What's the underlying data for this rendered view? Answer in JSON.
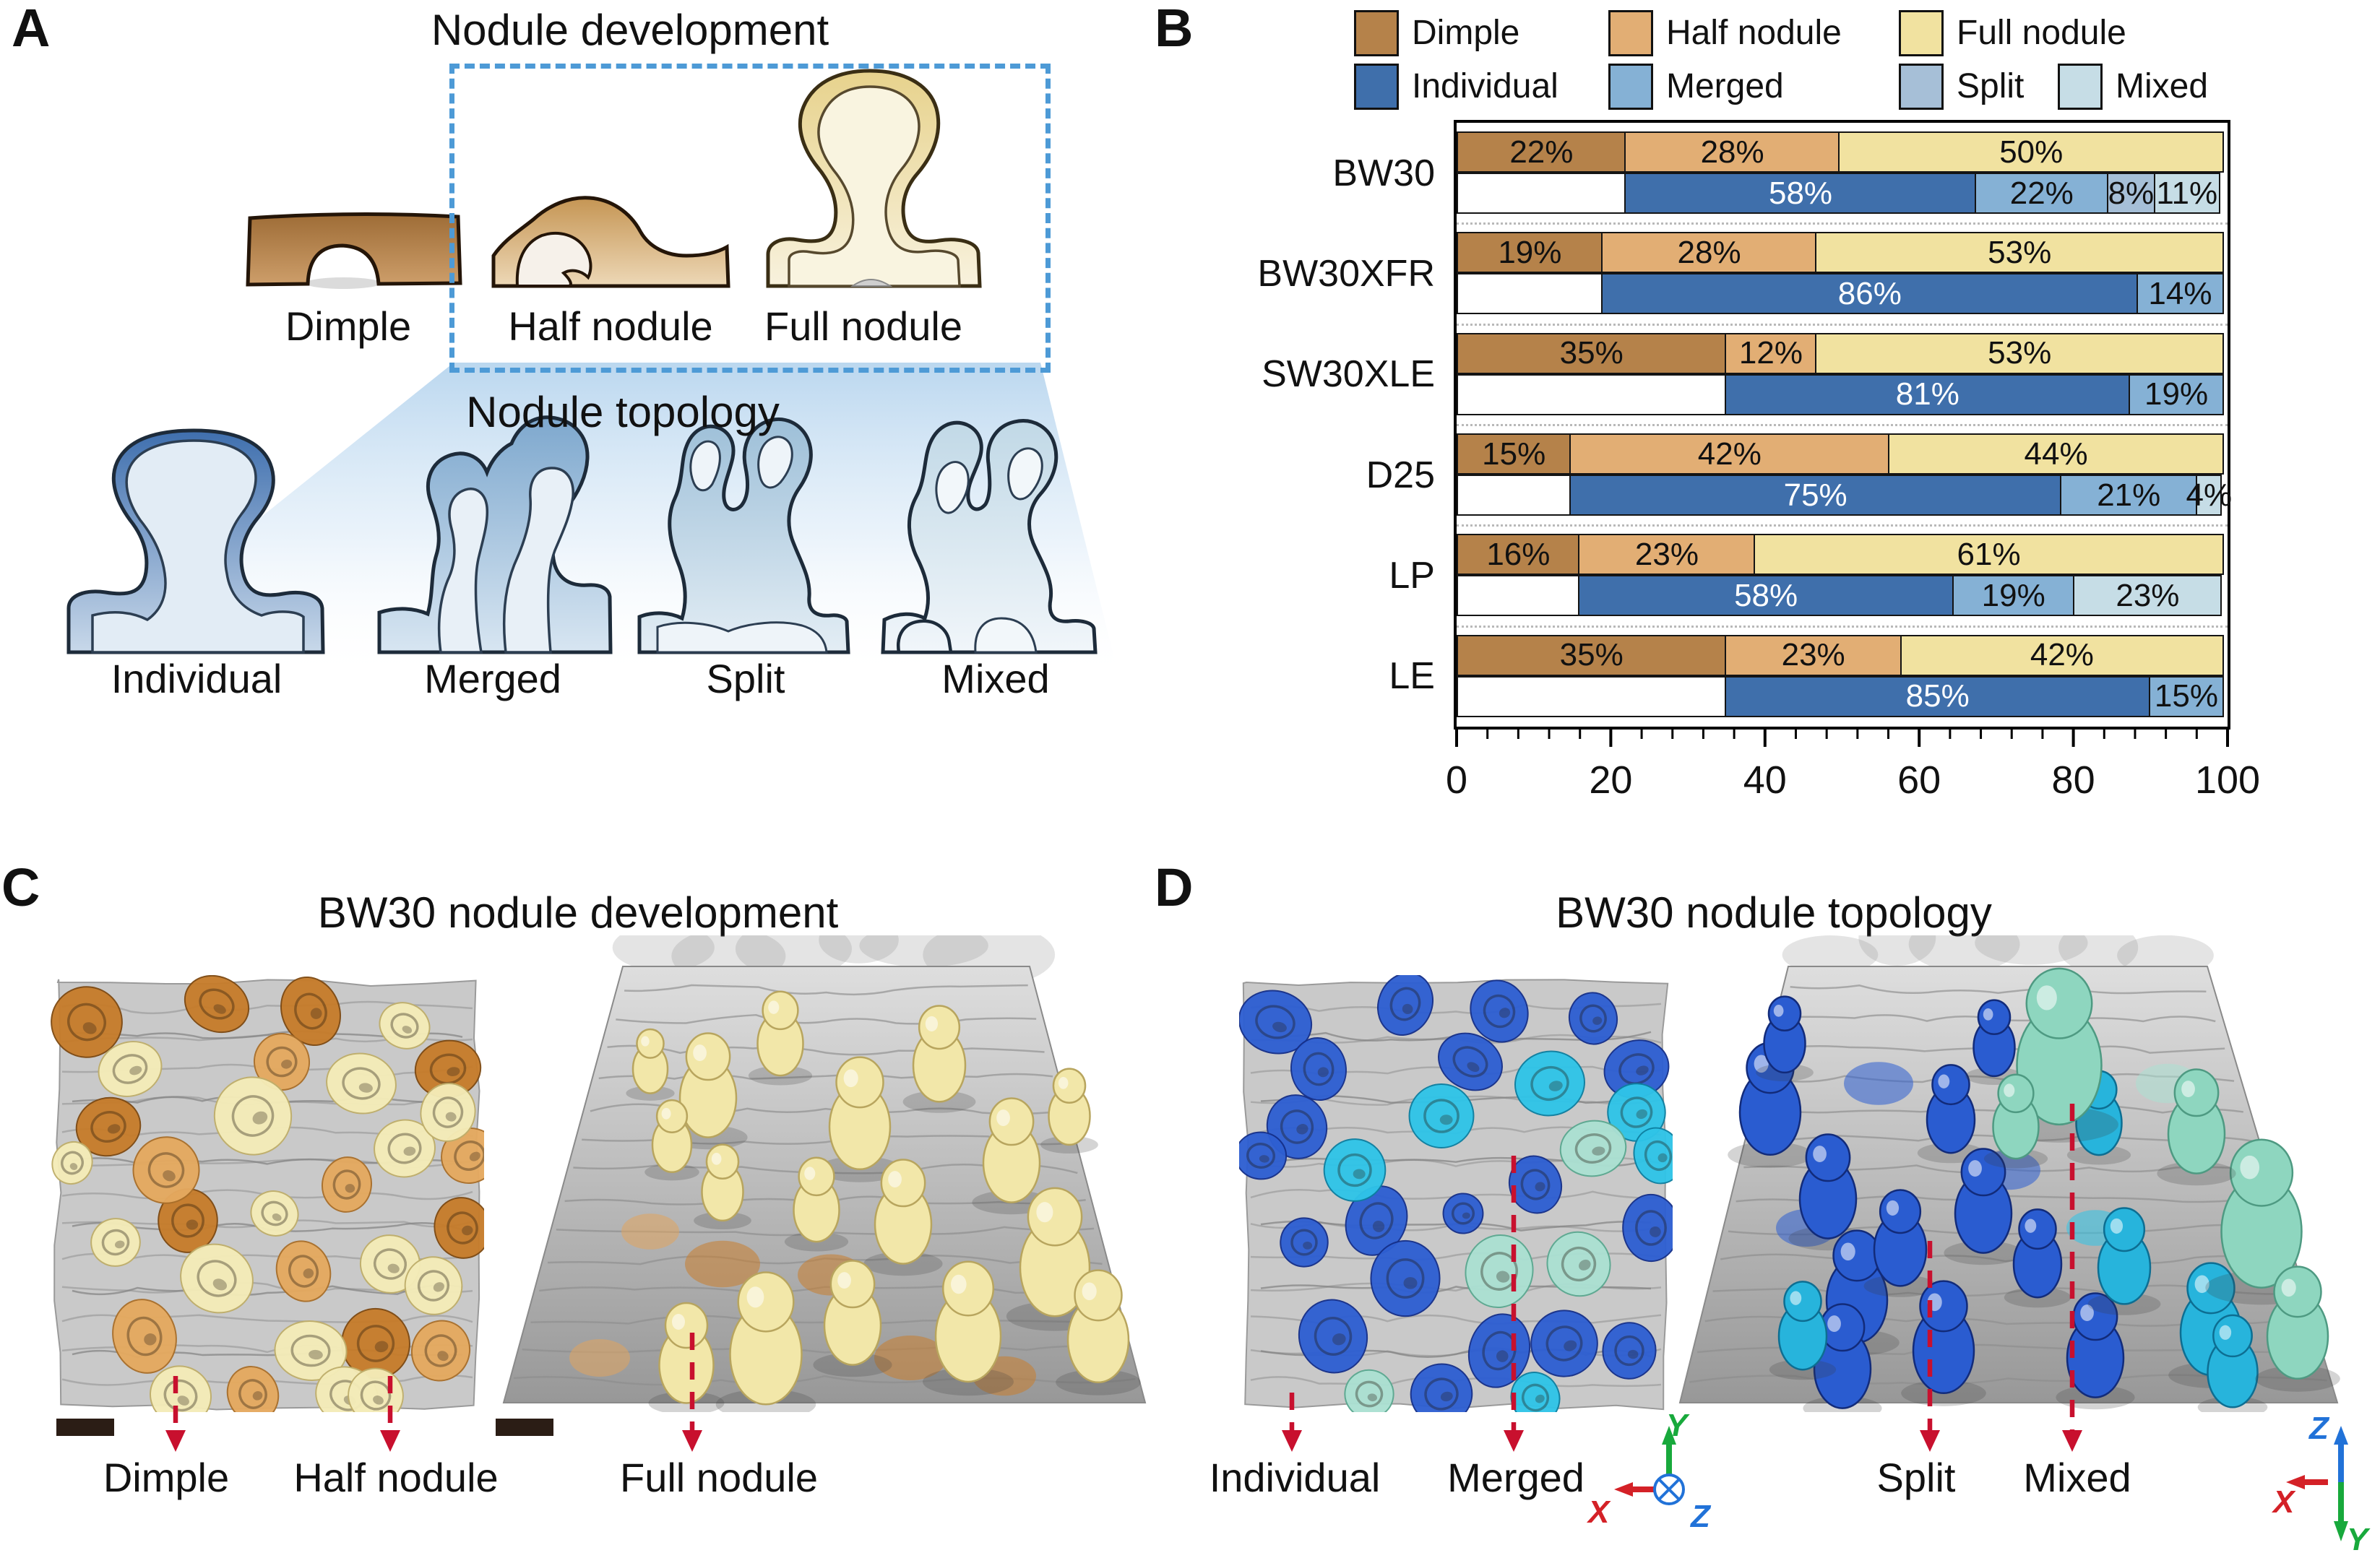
{
  "panel_a": {
    "letter": "A",
    "development": {
      "title": "Nodule development",
      "labels": [
        "Dimple",
        "Half nodule",
        "Full nodule"
      ]
    },
    "topology": {
      "title": "Nodule topology",
      "labels": [
        "Individual",
        "Merged",
        "Split",
        "Mixed"
      ]
    }
  },
  "panel_b": {
    "letter": "B",
    "legend_rows": [
      [
        "Dimple",
        "Half nodule",
        "Full nodule"
      ],
      [
        "Individual",
        "Merged",
        "Split",
        "Mixed"
      ]
    ]
  },
  "chart_data": {
    "type": "bar",
    "orientation": "horizontal-stacked-paired",
    "title": "",
    "xlabel": "",
    "x_axis": {
      "range": [
        0,
        100
      ],
      "ticks": [
        0,
        20,
        40,
        60,
        80,
        100
      ],
      "minor_step": 4
    },
    "categories": [
      "BW30",
      "BW30XFR",
      "SW30XLE",
      "D25",
      "LP",
      "LE"
    ],
    "series_colors": {
      "Dimple": "#b5824a",
      "Half nodule": "#e2ae74",
      "Full nodule": "#f1e2a0",
      "Individual": "#3f6fab",
      "Merged": "#85b1d5",
      "Split": "#a6bfd7",
      "Mixed": "#c6dde6"
    },
    "rows": [
      {
        "category": "BW30",
        "development": [
          {
            "name": "Dimple",
            "pct": 22
          },
          {
            "name": "Half nodule",
            "pct": 28
          },
          {
            "name": "Full nodule",
            "pct": 50
          }
        ],
        "topology": [
          {
            "name": "Individual",
            "pct": 58
          },
          {
            "name": "Merged",
            "pct": 22
          },
          {
            "name": "Split",
            "pct": 8
          },
          {
            "name": "Mixed",
            "pct": 11
          }
        ]
      },
      {
        "category": "BW30XFR",
        "development": [
          {
            "name": "Dimple",
            "pct": 19
          },
          {
            "name": "Half nodule",
            "pct": 28
          },
          {
            "name": "Full nodule",
            "pct": 53
          }
        ],
        "topology": [
          {
            "name": "Individual",
            "pct": 86
          },
          {
            "name": "Merged",
            "pct": 14
          }
        ]
      },
      {
        "category": "SW30XLE",
        "development": [
          {
            "name": "Dimple",
            "pct": 35
          },
          {
            "name": "Half nodule",
            "pct": 12
          },
          {
            "name": "Full nodule",
            "pct": 53
          }
        ],
        "topology": [
          {
            "name": "Individual",
            "pct": 81
          },
          {
            "name": "Merged",
            "pct": 19
          }
        ]
      },
      {
        "category": "D25",
        "development": [
          {
            "name": "Dimple",
            "pct": 15
          },
          {
            "name": "Half nodule",
            "pct": 42
          },
          {
            "name": "Full nodule",
            "pct": 44
          }
        ],
        "topology": [
          {
            "name": "Individual",
            "pct": 75
          },
          {
            "name": "Merged",
            "pct": 21
          },
          {
            "name": "Mixed",
            "pct": 4
          }
        ]
      },
      {
        "category": "LP",
        "development": [
          {
            "name": "Dimple",
            "pct": 16
          },
          {
            "name": "Half nodule",
            "pct": 23
          },
          {
            "name": "Full nodule",
            "pct": 61
          }
        ],
        "topology": [
          {
            "name": "Individual",
            "pct": 58
          },
          {
            "name": "Merged",
            "pct": 19
          },
          {
            "name": "Mixed",
            "pct": 23
          }
        ]
      },
      {
        "category": "LE",
        "development": [
          {
            "name": "Dimple",
            "pct": 35
          },
          {
            "name": "Half nodule",
            "pct": 23
          },
          {
            "name": "Full nodule",
            "pct": 42
          }
        ],
        "topology": [
          {
            "name": "Individual",
            "pct": 85
          },
          {
            "name": "Merged",
            "pct": 15
          }
        ]
      }
    ]
  },
  "panel_c": {
    "letter": "C",
    "title": "BW30 nodule development",
    "annotations": [
      "Dimple",
      "Half nodule",
      "Full nodule"
    ]
  },
  "panel_d": {
    "letter": "D",
    "title": "BW30 nodule topology",
    "annotations": [
      "Individual",
      "Merged",
      "Split",
      "Mixed"
    ],
    "axes_front": {
      "up": "Y",
      "left": "X",
      "into_page": "Z"
    },
    "axes_side": {
      "up": "Z",
      "left": "X",
      "down": "Y"
    },
    "axis_colors": {
      "x": "#d42127",
      "y": "#18a93c",
      "z": "#2172d8"
    }
  },
  "colors": {
    "dashed_box": "#4d9ad6",
    "annotation_arrow": "#c8102e",
    "chart_frame": "#000000",
    "group_separator": "#b9b9b9",
    "scale_bar": "#2b1d15"
  }
}
